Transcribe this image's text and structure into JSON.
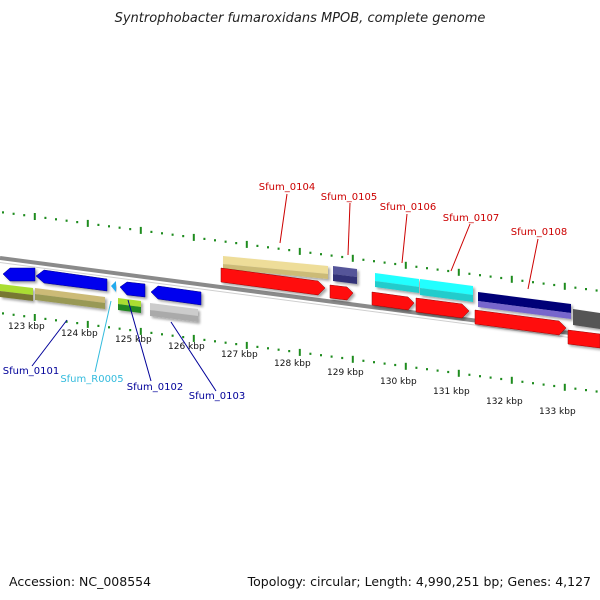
{
  "title": "Syntrophobacter fumaroxidans MPOB, complete genome",
  "footer": {
    "accession": "Accession: NC_008554",
    "summary": "Topology: circular; Length: 4,990,251 bp; Genes: 4,127"
  },
  "colors": {
    "backbone": "#8a8a8a",
    "dots": "#1e8c1e",
    "label_red": "#cc0000",
    "label_blue": "#000099",
    "label_cyan": "#33bbdd"
  },
  "ticks": [
    "123 kbp",
    "124 kbp",
    "125 kbp",
    "126 kbp",
    "127 kbp",
    "128 kbp",
    "129 kbp",
    "130 kbp",
    "131 kbp",
    "132 kbp",
    "133 kbp"
  ],
  "gene_labels": [
    {
      "text": "Sfum_0104",
      "color": "#cc0000"
    },
    {
      "text": "Sfum_0105",
      "color": "#cc0000"
    },
    {
      "text": "Sfum_0106",
      "color": "#cc0000"
    },
    {
      "text": "Sfum_0107",
      "color": "#cc0000"
    },
    {
      "text": "Sfum_0108",
      "color": "#cc0000"
    },
    {
      "text": "Sfum_0101",
      "color": "#000099"
    },
    {
      "text": "Sfum_R0005",
      "color": "#33bbdd"
    },
    {
      "text": "Sfum_0102",
      "color": "#000099"
    },
    {
      "text": "Sfum_0103",
      "color": "#000099"
    }
  ]
}
